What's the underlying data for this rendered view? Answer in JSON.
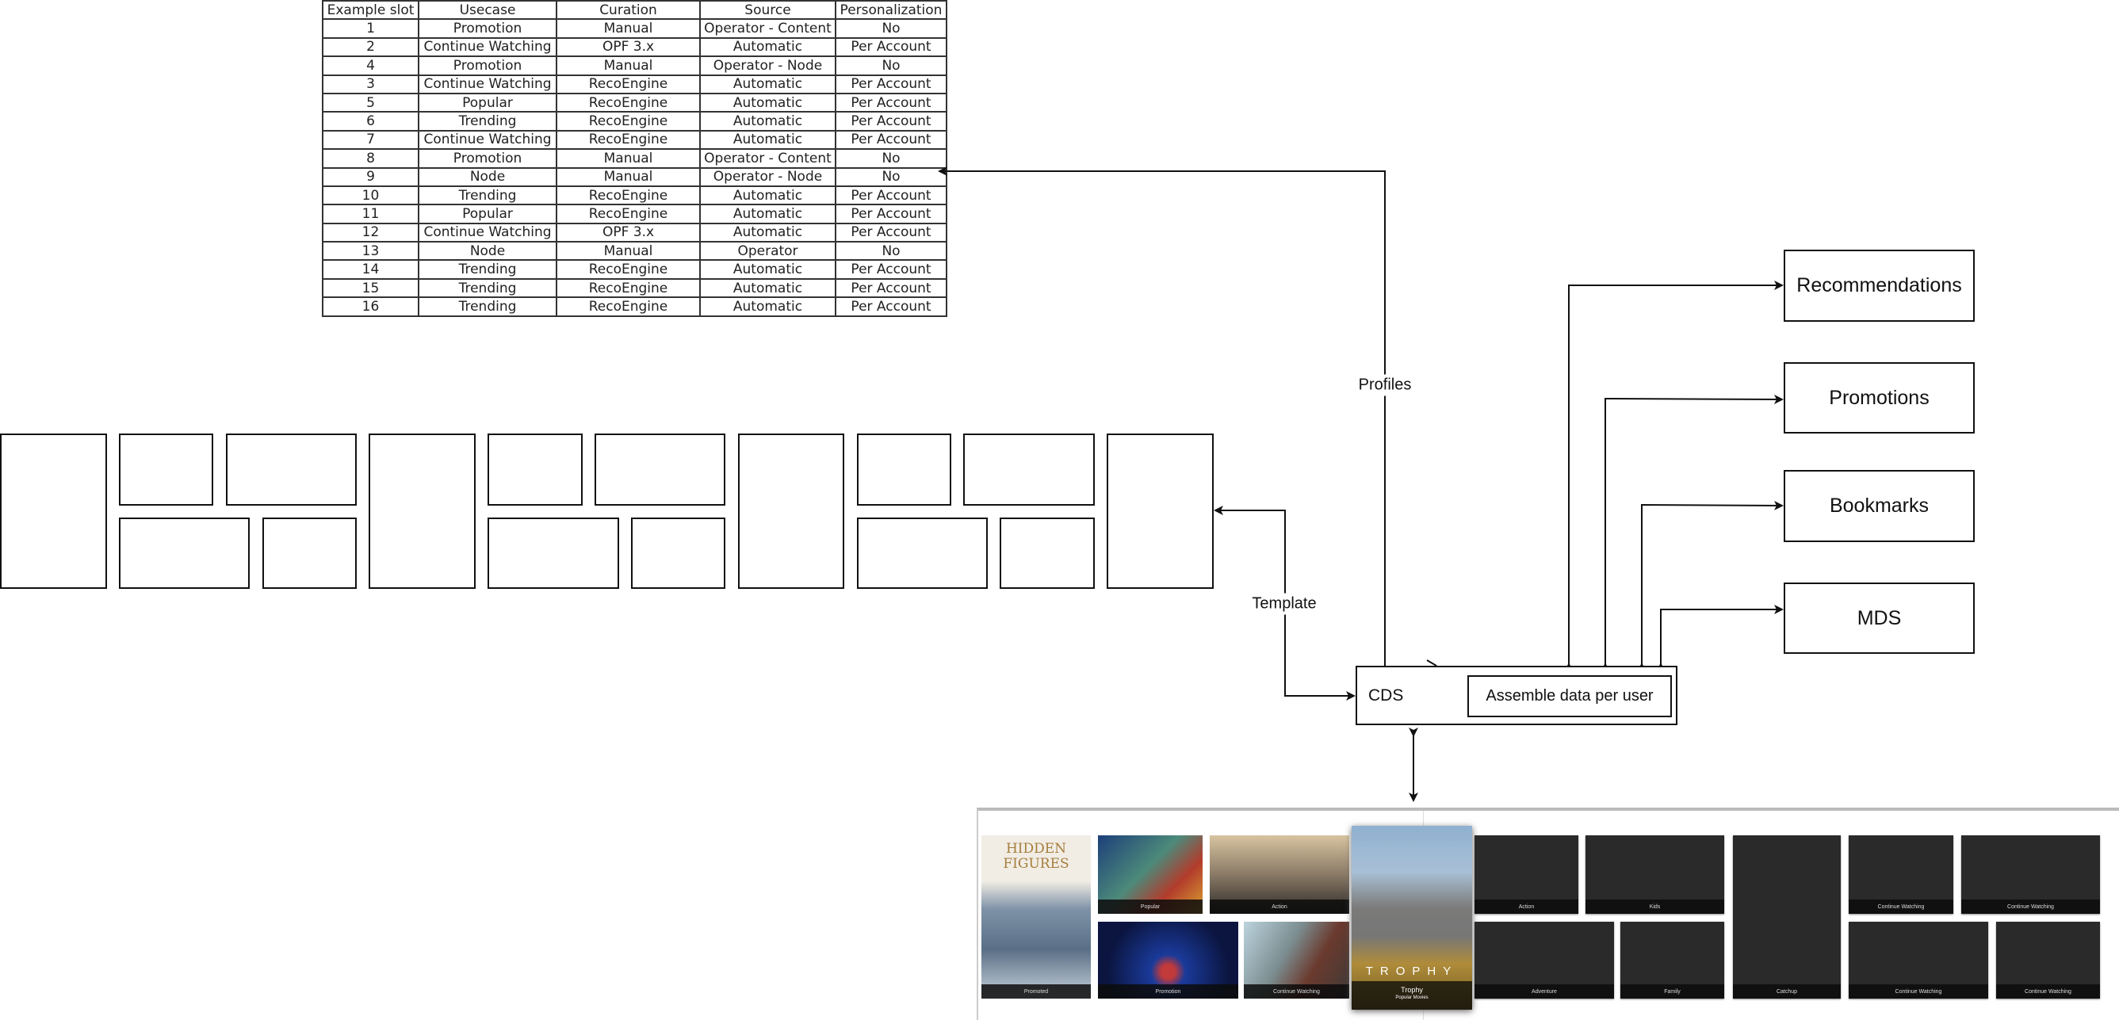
{
  "table": {
    "headers": [
      "Example slot",
      "Usecase",
      "Curation",
      "Source",
      "Personalization"
    ],
    "rows": [
      [
        "1",
        "Promotion",
        "Manual",
        "Operator - Content",
        "No"
      ],
      [
        "2",
        "Continue Watching",
        "OPF 3.x",
        "Automatic",
        "Per Account"
      ],
      [
        "4",
        "Promotion",
        "Manual",
        "Operator - Node",
        "No"
      ],
      [
        "3",
        "Continue Watching",
        "RecoEngine",
        "Automatic",
        "Per Account"
      ],
      [
        "5",
        "Popular",
        "RecoEngine",
        "Automatic",
        "Per Account"
      ],
      [
        "6",
        "Trending",
        "RecoEngine",
        "Automatic",
        "Per Account"
      ],
      [
        "7",
        "Continue Watching",
        "RecoEngine",
        "Automatic",
        "Per Account"
      ],
      [
        "8",
        "Promotion",
        "Manual",
        "Operator - Content",
        "No"
      ],
      [
        "9",
        "Node",
        "Manual",
        "Operator - Node",
        "No"
      ],
      [
        "10",
        "Trending",
        "RecoEngine",
        "Automatic",
        "Per Account"
      ],
      [
        "11",
        "Popular",
        "RecoEngine",
        "Automatic",
        "Per Account"
      ],
      [
        "12",
        "Continue Watching",
        "OPF 3.x",
        "Automatic",
        "Per Account"
      ],
      [
        "13",
        "Node",
        "Manual",
        "Operator",
        "No"
      ],
      [
        "14",
        "Trending",
        "RecoEngine",
        "Automatic",
        "Per Account"
      ],
      [
        "15",
        "Trending",
        "RecoEngine",
        "Automatic",
        "Per Account"
      ],
      [
        "16",
        "Trending",
        "RecoEngine",
        "Automatic",
        "Per Account"
      ]
    ]
  },
  "edges": {
    "profiles": "Profiles",
    "template": "Template"
  },
  "cds": {
    "label": "CDS",
    "inner": "Assemble data per user"
  },
  "services": [
    "Recommendations",
    "Promotions",
    "Bookmarks",
    "MDS"
  ],
  "screenshot": {
    "poster_title": "HIDDEN FIGURES",
    "featured_title_art": "TROPHY",
    "featured_title": "Trophy",
    "featured_subtitle": "Popular Movies",
    "captions": {
      "hidden_figures": "Promoted",
      "popular": "Popular",
      "action": "Action",
      "promotion": "Promotion",
      "continue": "Continue Watching",
      "dark": [
        "Action",
        "Kids",
        "Catchup",
        "Continue Watching",
        "Continue Watching",
        "Adventure",
        "Family",
        "Continue Watching",
        "Continue Watching"
      ]
    }
  },
  "colors": {
    "line": "#111111",
    "tile_dark": "#2a2a2a"
  }
}
